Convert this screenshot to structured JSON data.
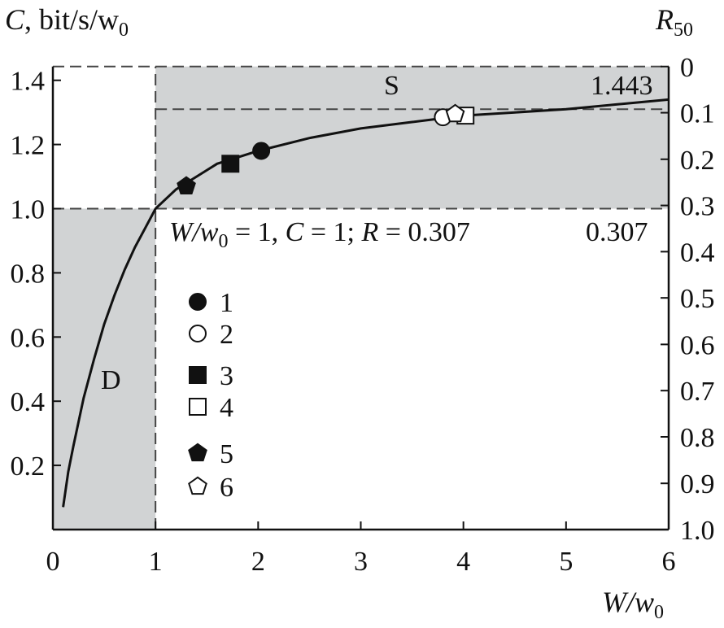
{
  "chart_data": {
    "type": "line",
    "y_title": {
      "main": "C",
      "rest": ", bit/s/w",
      "sub": "0"
    },
    "y2_title": {
      "main": "R",
      "sub": "50"
    },
    "x_title": {
      "main": "W/w",
      "sub": "0"
    },
    "xlim": [
      0,
      6
    ],
    "ylim": [
      0,
      1.45
    ],
    "x_ticks": [
      0,
      1,
      2,
      3,
      4,
      5,
      6
    ],
    "y_ticks": [
      0.2,
      0.4,
      0.6,
      0.8,
      1.0,
      1.2,
      1.4
    ],
    "y_tick_labels": [
      "0.2",
      "0.4",
      "0.6",
      "0.8",
      "1.0",
      "1.2",
      "1.4"
    ],
    "y2_ticks": [
      {
        "label": "0",
        "y": 1.443
      },
      {
        "label": "0.1",
        "y": 1.299
      },
      {
        "label": "0.2",
        "y": 1.154
      },
      {
        "label": "0.3",
        "y": 1.01
      },
      {
        "label": "0.4",
        "y": 0.866
      },
      {
        "label": "0.5",
        "y": 0.722
      },
      {
        "label": "0.6",
        "y": 0.577
      },
      {
        "label": "0.7",
        "y": 0.433
      },
      {
        "label": "0.8",
        "y": 0.289
      },
      {
        "label": "0.9",
        "y": 0.144
      },
      {
        "label": "1.0",
        "y": 0.0
      }
    ],
    "curve": {
      "x": [
        0.1,
        0.15,
        0.2,
        0.3,
        0.4,
        0.5,
        0.6,
        0.7,
        0.8,
        0.9,
        1.0,
        1.2,
        1.4,
        1.6,
        1.8,
        2.0,
        2.5,
        3.0,
        3.5,
        4.0,
        4.5,
        5.0,
        5.5,
        6.0
      ],
      "y": [
        0.07,
        0.18,
        0.26,
        0.41,
        0.53,
        0.64,
        0.73,
        0.81,
        0.88,
        0.94,
        1.0,
        1.06,
        1.1,
        1.14,
        1.16,
        1.18,
        1.22,
        1.25,
        1.27,
        1.29,
        1.3,
        1.31,
        1.325,
        1.34
      ]
    },
    "shaded_regions": [
      {
        "label": "S",
        "x": [
          1,
          6
        ],
        "y": [
          1.0,
          1.443
        ]
      },
      {
        "label": "D",
        "x": [
          0,
          1
        ],
        "y": [
          0,
          1.0
        ]
      }
    ],
    "horizontal_lines": [
      {
        "y": 1.443,
        "x": [
          0,
          6
        ],
        "style": "dashed"
      },
      {
        "y": 1.31,
        "x": [
          1,
          6
        ],
        "style": "dashed"
      },
      {
        "y": 1.0,
        "x": [
          0,
          6
        ],
        "style": "dashed"
      }
    ],
    "vertical_lines": [
      {
        "x": 1,
        "y": [
          0,
          1.443
        ],
        "style": "dashed"
      }
    ],
    "series": [
      {
        "name": "1",
        "marker": "circle",
        "filled": true,
        "x": [
          2.03
        ],
        "y": [
          1.18
        ]
      },
      {
        "name": "2",
        "marker": "circle",
        "filled": false,
        "x": [
          3.8
        ],
        "y": [
          1.285
        ]
      },
      {
        "name": "3",
        "marker": "square",
        "filled": true,
        "x": [
          1.73
        ],
        "y": [
          1.14
        ]
      },
      {
        "name": "4",
        "marker": "square",
        "filled": false,
        "x": [
          4.02
        ],
        "y": [
          1.29
        ]
      },
      {
        "name": "5",
        "marker": "pentagon",
        "filled": true,
        "x": [
          1.3
        ],
        "y": [
          1.07
        ]
      },
      {
        "name": "6",
        "marker": "pentagon",
        "filled": false,
        "x": [
          3.92
        ],
        "y": [
          1.295
        ]
      }
    ],
    "annotations": {
      "region_s": "S",
      "region_d": "D",
      "value_top": "1.443",
      "value_mid": "0.307",
      "formula": {
        "p1": "W/w",
        "sub": "0",
        "p2": " = 1, ",
        "p3": "C",
        "p4": " = 1; ",
        "p5": "R",
        "p6": " = 0.307"
      }
    },
    "legend_position": "middle-left",
    "grid": false
  }
}
